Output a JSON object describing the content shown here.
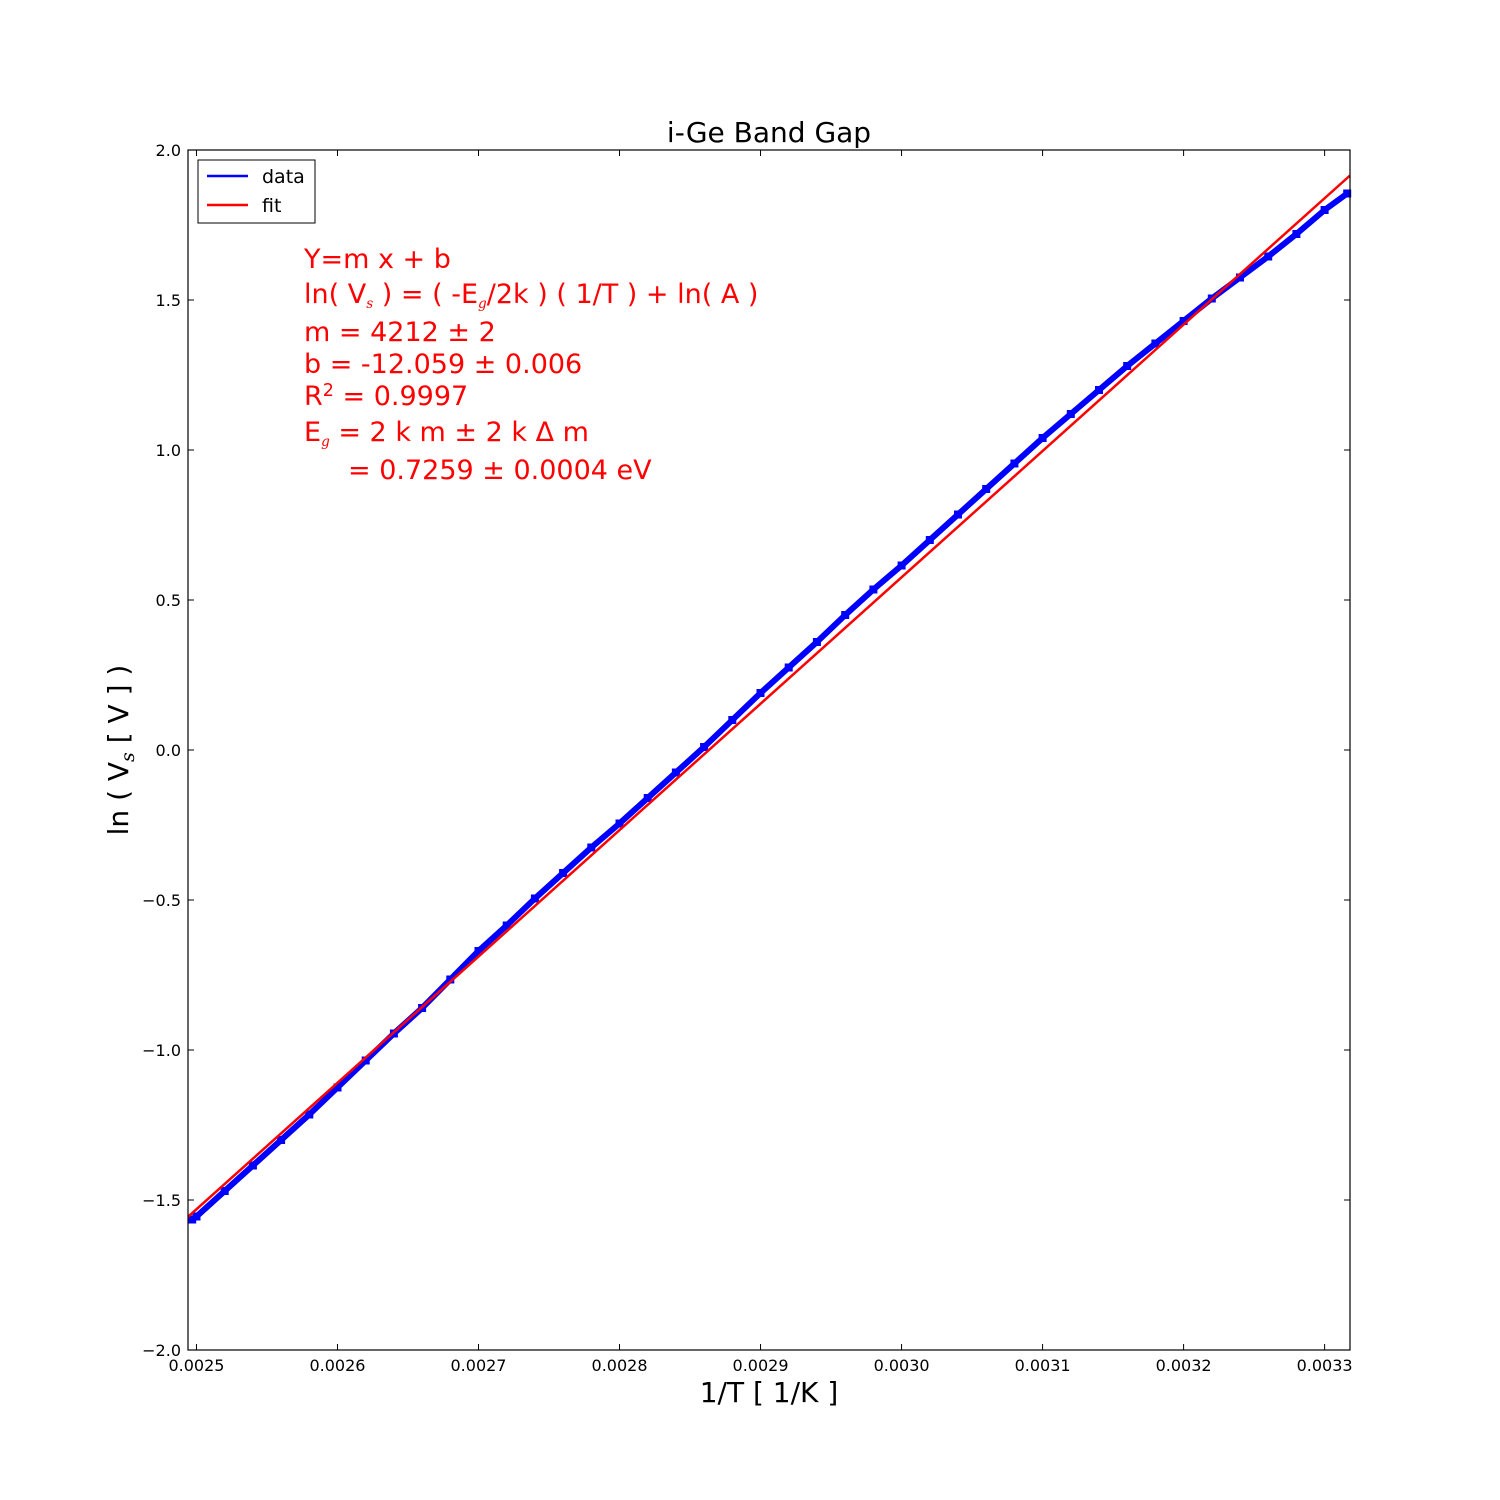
{
  "chart_data": {
    "type": "line",
    "title": "i-Ge Band Gap",
    "xlabel": "1/T [ 1/K ]",
    "ylabel": "ln ( V",
    "ylabel_sub": "s",
    "ylabel_tail": " [ V ] )",
    "xlim": [
      0.002494,
      0.003318
    ],
    "ylim": [
      -2.0,
      2.0
    ],
    "x_ticks": [
      0.0025,
      0.0026,
      0.0027,
      0.0028,
      0.0029,
      0.003,
      0.0031,
      0.0032,
      0.0033
    ],
    "x_tick_labels": [
      "0.0025",
      "0.0026",
      "0.0027",
      "0.0028",
      "0.0029",
      "0.0030",
      "0.0031",
      "0.0032",
      "0.0033"
    ],
    "y_ticks": [
      -2.0,
      -1.5,
      -1.0,
      -0.5,
      0.0,
      0.5,
      1.0,
      1.5,
      2.0
    ],
    "y_tick_labels": [
      "−2.0",
      "−1.5",
      "−1.0",
      "−0.5",
      "0.0",
      "0.5",
      "1.0",
      "1.5",
      "2.0"
    ],
    "grid": false,
    "legend_position": "upper-left",
    "series": [
      {
        "name": "data",
        "color": "#0000ff",
        "x": [
          0.002497,
          0.0025,
          0.00252,
          0.00254,
          0.00256,
          0.00258,
          0.0026,
          0.00262,
          0.00264,
          0.00266,
          0.00268,
          0.0027,
          0.00272,
          0.00274,
          0.00276,
          0.00278,
          0.0028,
          0.00282,
          0.00284,
          0.00286,
          0.00288,
          0.0029,
          0.00292,
          0.00294,
          0.00296,
          0.00298,
          0.003,
          0.00302,
          0.00304,
          0.00306,
          0.00308,
          0.0031,
          0.00312,
          0.00314,
          0.00316,
          0.00318,
          0.0032,
          0.00322,
          0.00324,
          0.00326,
          0.00328,
          0.0033,
          0.003316
        ],
        "y": [
          -1.565,
          -1.555,
          -1.47,
          -1.385,
          -1.3,
          -1.215,
          -1.125,
          -1.035,
          -0.945,
          -0.86,
          -0.765,
          -0.67,
          -0.585,
          -0.495,
          -0.41,
          -0.325,
          -0.245,
          -0.16,
          -0.075,
          0.01,
          0.1,
          0.19,
          0.275,
          0.36,
          0.45,
          0.535,
          0.615,
          0.7,
          0.785,
          0.87,
          0.955,
          1.04,
          1.12,
          1.2,
          1.28,
          1.355,
          1.43,
          1.505,
          1.575,
          1.645,
          1.72,
          1.8,
          1.855
        ]
      },
      {
        "name": "fit",
        "color": "#ff0000",
        "x": [
          0.002494,
          0.003318
        ],
        "y": [
          -1.556,
          1.915
        ]
      }
    ],
    "annotations": {
      "color": "#ff0000",
      "l1": "Y=m x + b",
      "l2_a": "ln( V",
      "l2_sub1": "s",
      "l2_b": " ) = ( -E",
      "l2_sub2": "g",
      "l2_c": "/2k ) ( 1/T ) + ln( A )",
      "l3": "m = 4212 ± 2",
      "l4": "b = -12.059 ± 0.006",
      "l5_a": "R",
      "l5_sup": "2",
      "l5_b": " = 0.9997",
      "l6_a": "E",
      "l6_sub": "g",
      "l6_b": " = 2 k m ± 2 k Δ m",
      "l7": "= 0.7259 ± 0.0004 eV"
    }
  }
}
